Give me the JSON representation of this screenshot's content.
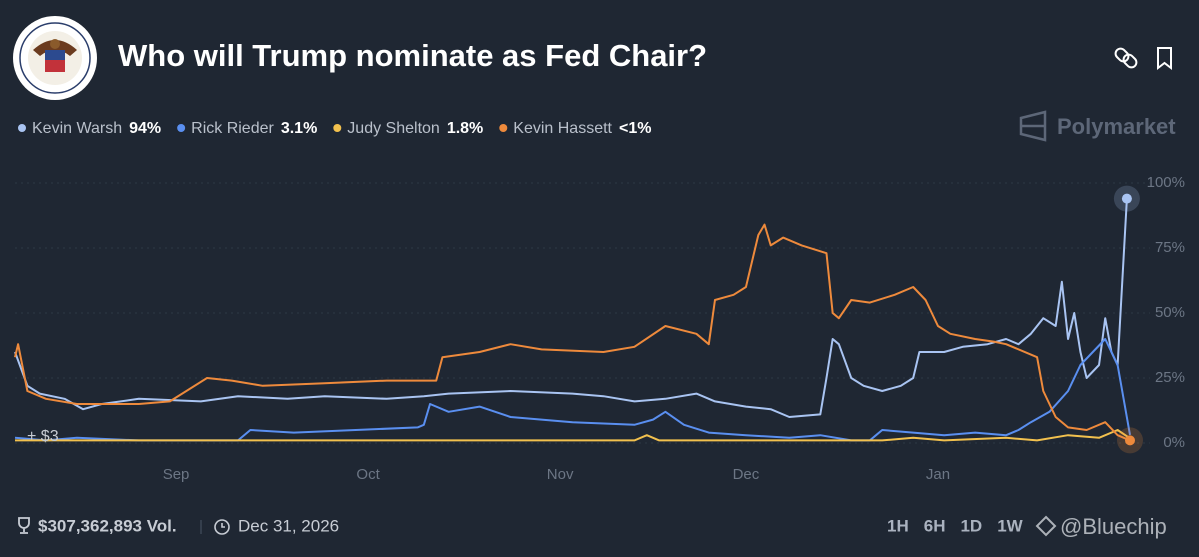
{
  "chart_data": {
    "type": "line",
    "title": "Who will Trump nominate as Fed Chair?",
    "brand": "Polymarket",
    "annotation": "+ $3",
    "footer": {
      "volume": "$307,362,893 Vol.",
      "end_date": "Dec 31, 2026",
      "ranges": [
        "1H",
        "6H",
        "1D",
        "1W"
      ],
      "watermark": "@Bluechip"
    },
    "xlim": [
      0,
      180
    ],
    "xticks": [
      {
        "value": 26,
        "label": "Sep"
      },
      {
        "value": 57,
        "label": "Oct"
      },
      {
        "value": 88,
        "label": "Nov"
      },
      {
        "value": 118,
        "label": "Dec"
      },
      {
        "value": 149,
        "label": "Jan"
      }
    ],
    "ylim": [
      0,
      100
    ],
    "yticks": [
      {
        "value": 0,
        "label": "0%"
      },
      {
        "value": 25,
        "label": "25%"
      },
      {
        "value": 50,
        "label": "50%"
      },
      {
        "value": 75,
        "label": "75%"
      },
      {
        "value": 100,
        "label": "100%"
      }
    ],
    "grid": true,
    "series": [
      {
        "name": "Kevin Warsh",
        "current": "94%",
        "color": "#a9c4f2",
        "x": [
          0,
          2,
          4,
          8,
          11,
          14,
          20,
          30,
          36,
          44,
          50,
          60,
          66,
          70,
          80,
          90,
          95,
          100,
          105,
          110,
          113,
          118,
          122,
          125,
          130,
          131,
          132,
          133,
          135,
          137,
          140,
          143,
          145,
          146,
          150,
          153,
          157,
          160,
          162,
          164,
          166,
          168,
          169,
          170,
          171,
          172,
          173,
          175,
          176,
          177,
          178,
          179.5
        ],
        "values": [
          35,
          22,
          19,
          17,
          13,
          15,
          17,
          16,
          18,
          17,
          18,
          17,
          18,
          19,
          20,
          19,
          18,
          16,
          17,
          19,
          16,
          14,
          13,
          10,
          11,
          25,
          40,
          38,
          25,
          22,
          20,
          22,
          25,
          35,
          35,
          37,
          38,
          40,
          38,
          42,
          48,
          45,
          62,
          40,
          50,
          35,
          25,
          30,
          48,
          35,
          30,
          94
        ]
      },
      {
        "name": "Rick Rieder",
        "current": "3.1%",
        "color": "#5a8ff0",
        "x": [
          0,
          5,
          10,
          20,
          36,
          38,
          45,
          55,
          65,
          66,
          67,
          70,
          75,
          80,
          90,
          100,
          103,
          105,
          108,
          112,
          118,
          125,
          130,
          135,
          138,
          139,
          140,
          145,
          150,
          155,
          160,
          162,
          164,
          167,
          170,
          172,
          174,
          176,
          178,
          180
        ],
        "values": [
          2,
          1,
          2,
          1,
          1,
          5,
          4,
          5,
          6,
          7,
          15,
          12,
          14,
          10,
          8,
          7,
          9,
          12,
          7,
          4,
          3,
          2,
          3,
          1,
          1,
          3,
          5,
          4,
          3,
          4,
          3,
          5,
          8,
          12,
          20,
          30,
          35,
          40,
          30,
          3.1
        ]
      },
      {
        "name": "Judy Shelton",
        "current": "1.8%",
        "color": "#f2c14e",
        "x": [
          0,
          20,
          40,
          60,
          80,
          100,
          102,
          104,
          120,
          140,
          145,
          150,
          160,
          165,
          170,
          175,
          178,
          180
        ],
        "values": [
          1,
          1,
          1,
          1,
          1,
          1,
          3,
          1,
          1,
          1,
          2,
          1,
          2,
          1,
          3,
          2,
          5,
          1.8
        ]
      },
      {
        "name": "Kevin Hassett",
        "current": "<1%",
        "color": "#ee8a3c",
        "x": [
          0,
          0.5,
          2,
          5,
          10,
          20,
          25,
          31,
          35,
          40,
          50,
          60,
          68,
          69,
          75,
          80,
          85,
          95,
          100,
          105,
          110,
          112,
          113,
          116,
          118,
          120,
          121,
          122,
          124,
          127,
          131,
          132,
          133,
          135,
          138,
          142,
          145,
          147,
          149,
          151,
          155,
          158,
          160,
          165,
          166,
          168,
          170,
          173,
          176,
          178,
          180
        ],
        "values": [
          33,
          38,
          20,
          17,
          15,
          15,
          16,
          25,
          24,
          22,
          23,
          24,
          24,
          33,
          35,
          38,
          36,
          35,
          37,
          45,
          42,
          38,
          55,
          57,
          60,
          80,
          84,
          76,
          79,
          76,
          73,
          50,
          48,
          55,
          54,
          57,
          60,
          55,
          45,
          42,
          40,
          39,
          38,
          33,
          20,
          10,
          6,
          5,
          8,
          3,
          1
        ]
      }
    ]
  }
}
